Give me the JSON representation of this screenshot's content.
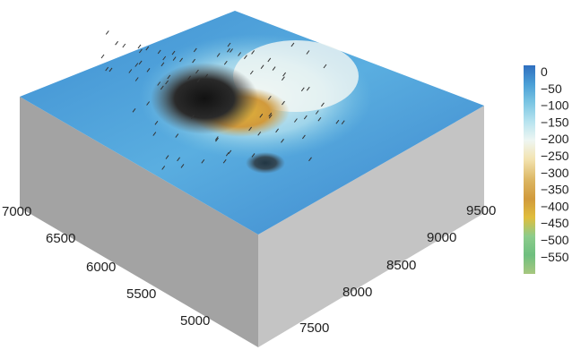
{
  "chart_data": {
    "type": "heatmap",
    "subtype": "3d-surface-block",
    "title": "",
    "xlabel": "",
    "ylabel": "",
    "x_ticks": [
      "7000",
      "6500",
      "6000",
      "5500",
      "5000"
    ],
    "y_ticks": [
      "9500",
      "9000",
      "8500",
      "8000",
      "7500"
    ],
    "colorbar": {
      "ticks": [
        "0",
        "−50",
        "−100",
        "−150",
        "−200",
        "−250",
        "−300",
        "−350",
        "−400",
        "−450",
        "−500",
        "−550"
      ],
      "range": [
        -550,
        0
      ],
      "colors": [
        "#2f6fbf",
        "#4a9fd6",
        "#7cc6e3",
        "#b7e3ef",
        "#eef6f2",
        "#f3e3b0",
        "#dcb662",
        "#d19a3c",
        "#e0be3d",
        "#8ccc8c",
        "#6fbf7f",
        "#a7c77f"
      ]
    },
    "surface": {
      "background_value": -60,
      "features": [
        {
          "name": "pit-deep-dark",
          "value": -550
        },
        {
          "name": "pit-gold-floor",
          "value": -380
        },
        {
          "name": "pit-rim-light",
          "value": -220
        }
      ]
    },
    "grid": false,
    "legend_position": "right"
  }
}
